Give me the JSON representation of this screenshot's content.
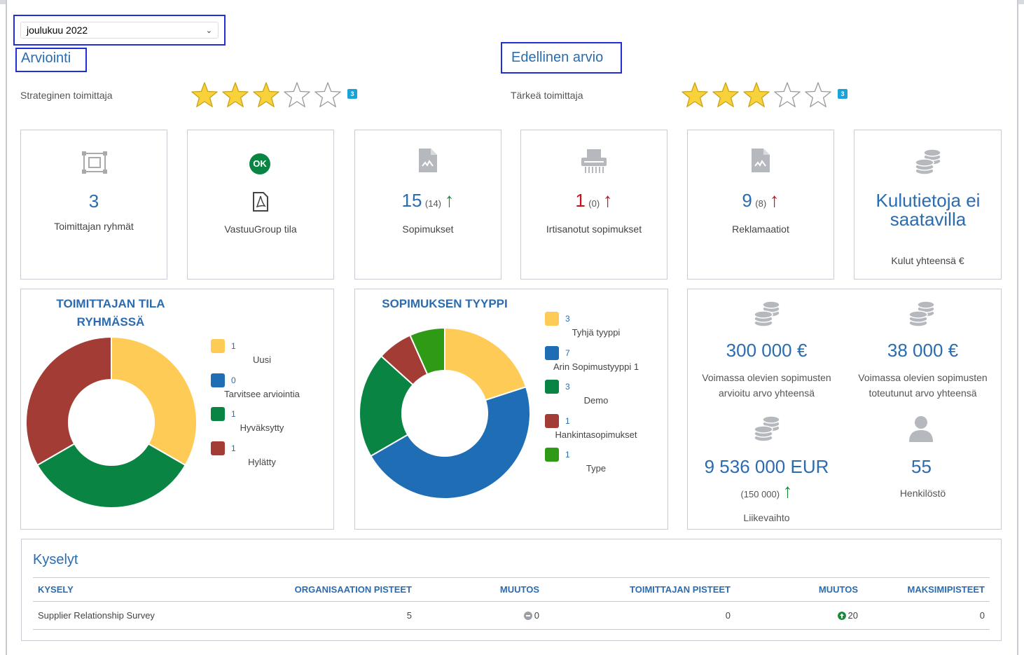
{
  "period_select": {
    "value": "joulukuu 2022"
  },
  "rating": {
    "current": {
      "heading": "Arviointi",
      "label": "Strateginen toimittaja",
      "stars_filled": 3,
      "stars_total": 5,
      "badge": "3"
    },
    "previous": {
      "heading": "Edellinen arvio",
      "label": "Tärkeä toimittaja",
      "stars_filled": 3,
      "stars_total": 5,
      "badge": "3"
    }
  },
  "cards": {
    "groups": {
      "value": "3",
      "label": "Toimittajan ryhmät"
    },
    "vastuu": {
      "ok_badge": "OK",
      "label": "VastuuGroup tila"
    },
    "contracts": {
      "value": "15",
      "prev": "(14)",
      "label": "Sopimukset"
    },
    "terminated": {
      "value": "1",
      "prev": "(0)",
      "label": "Irtisanotut sopimukset"
    },
    "complaints": {
      "value": "9",
      "prev": "(8)",
      "label": "Reklamaatiot"
    },
    "spend": {
      "value": "Kulutietoja ei saatavilla",
      "label": "Kulut yhteensä €"
    }
  },
  "chart_data": [
    {
      "type": "pie",
      "title": "TOIMITTAJAN TILA RYHMÄSSÄ",
      "categories": [
        "Uusi",
        "Tarvitsee arviointia",
        "Hyväksytty",
        "Hylätty"
      ],
      "values": [
        1,
        0,
        1,
        1
      ],
      "colors": [
        "#fecb57",
        "#1f6db5",
        "#0a8443",
        "#a23c35"
      ],
      "legend": "right"
    },
    {
      "type": "pie",
      "title": "SOPIMUKSEN TYYPPI",
      "categories": [
        "Tyhjä tyyppi",
        "Arin Sopimustyyppi 1",
        "Demo",
        "Hankintasopimukset",
        "Type"
      ],
      "values": [
        3,
        7,
        3,
        1,
        1
      ],
      "colors": [
        "#fecb57",
        "#1f6db5",
        "#0a8443",
        "#a23c35",
        "#2e9a16"
      ],
      "legend": "right"
    }
  ],
  "kpis": {
    "estimated": {
      "value": "300 000 €",
      "label": "Voimassa olevien sopimusten arvioitu arvo yhteensä"
    },
    "realized": {
      "value": "38 000 €",
      "label": "Voimassa olevien sopimusten toteutunut arvo yhteensä"
    },
    "revenue": {
      "value": "9 536 000 EUR",
      "prev": "(150 000)",
      "label": "Liikevaihto"
    },
    "staff": {
      "value": "55",
      "label": "Henkilöstö"
    }
  },
  "surveys": {
    "title": "Kyselyt",
    "columns": [
      "KYSELY",
      "ORGANISAATION PISTEET",
      "MUUTOS",
      "TOIMITTAJAN PISTEET",
      "MUUTOS",
      "MAKSIMIPISTEET"
    ],
    "rows": [
      {
        "name": "Supplier Relationship Survey",
        "org_points": "5",
        "org_change": "0",
        "supplier_points": "0",
        "supplier_change": "20",
        "max_points": "0"
      }
    ]
  },
  "colors": {
    "accent": "#2b6cb0",
    "up_green": "#1a8a3a",
    "up_red": "#c1141e",
    "star": "#f7d23a",
    "badge": "#1aa3d9"
  }
}
